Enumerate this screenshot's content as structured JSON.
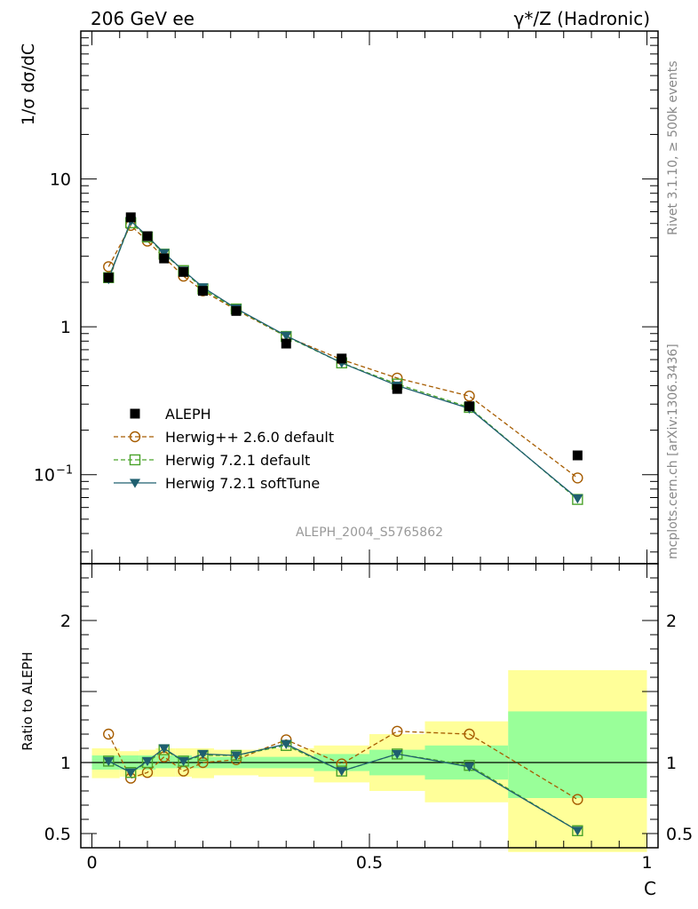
{
  "header": {
    "left_title": "206 GeV ee",
    "right_title": "γ*/Z (Hadronic)"
  },
  "side_labels": {
    "rivet": "Rivet 3.1.10, ≥ 500k events",
    "mcplots": "mcplots.cern.ch [arXiv:1306.3436]"
  },
  "analysis_label": "ALEPH_2004_S5765862",
  "chart_data": [
    {
      "type": "scatter",
      "ylabel": "1/σ  dσ/dC",
      "yscale": "log",
      "xlim": [
        -0.02,
        1.02
      ],
      "ylim": [
        0.025,
        100
      ],
      "y_ticks": [
        {
          "value": 10,
          "label": "10"
        },
        {
          "value": 1,
          "label": "1"
        },
        {
          "value": 0.1,
          "label": "10",
          "exp": "−1"
        }
      ],
      "legend_position": "lower-left",
      "series": [
        {
          "name": "ALEPH",
          "style": "data",
          "color": "#000000",
          "x": [
            0.03,
            0.07,
            0.1,
            0.13,
            0.165,
            0.2,
            0.26,
            0.35,
            0.45,
            0.55,
            0.68,
            0.875
          ],
          "y": [
            2.15,
            5.5,
            4.1,
            2.9,
            2.35,
            1.75,
            1.28,
            0.77,
            0.61,
            0.38,
            0.29,
            0.135
          ],
          "ratio": [
            1.0,
            1.0,
            1.0,
            1.0,
            1.0,
            1.0,
            1.0,
            1.0,
            1.0,
            1.0,
            1.0,
            1.0
          ]
        },
        {
          "name": "Herwig++ 2.6.0 default",
          "style": "circle",
          "color": "#a65c00",
          "x": [
            0.03,
            0.07,
            0.1,
            0.13,
            0.165,
            0.2,
            0.26,
            0.35,
            0.45,
            0.55,
            0.68,
            0.875
          ],
          "y": [
            2.55,
            4.85,
            3.8,
            2.95,
            2.2,
            1.75,
            1.3,
            0.86,
            0.6,
            0.45,
            0.34,
            0.095
          ],
          "ratio": [
            1.2,
            0.89,
            0.93,
            1.04,
            0.94,
            1.0,
            1.02,
            1.16,
            0.99,
            1.22,
            1.2,
            0.74
          ]
        },
        {
          "name": "Herwig 7.2.1 default",
          "style": "square",
          "color": "#4aa32a",
          "x": [
            0.03,
            0.07,
            0.1,
            0.13,
            0.165,
            0.2,
            0.26,
            0.35,
            0.45,
            0.55,
            0.68,
            0.875
          ],
          "y": [
            2.15,
            5.05,
            4.05,
            3.1,
            2.4,
            1.8,
            1.32,
            0.86,
            0.57,
            0.41,
            0.285,
            0.068
          ],
          "ratio": [
            1.01,
            0.93,
            1.0,
            1.09,
            1.01,
            1.05,
            1.05,
            1.12,
            0.94,
            1.06,
            0.98,
            0.52
          ]
        },
        {
          "name": "Herwig 7.2.1 softTune",
          "style": "triangle",
          "color": "#1f5f6f",
          "x": [
            0.03,
            0.07,
            0.1,
            0.13,
            0.165,
            0.2,
            0.26,
            0.35,
            0.45,
            0.55,
            0.68,
            0.875
          ],
          "y": [
            2.1,
            5.2,
            4.1,
            3.15,
            2.4,
            1.85,
            1.33,
            0.87,
            0.57,
            0.4,
            0.28,
            0.069
          ],
          "ratio": [
            1.01,
            0.93,
            1.01,
            1.1,
            1.01,
            1.06,
            1.05,
            1.13,
            0.94,
            1.06,
            0.97,
            0.52
          ]
        }
      ]
    },
    {
      "type": "line",
      "ylabel": "Ratio to ALEPH",
      "xlabel": "C",
      "xlim": [
        -0.02,
        1.02
      ],
      "ylim": [
        0.4,
        2.4
      ],
      "y_ticks": [
        {
          "value": 2,
          "label": "2"
        },
        {
          "value": 1,
          "label": "1"
        },
        {
          "value": 0.5,
          "label": "0.5"
        }
      ],
      "x_ticks": [
        {
          "value": 0,
          "label": "0"
        },
        {
          "value": 0.5,
          "label": "0.5"
        },
        {
          "value": 1,
          "label": "1"
        }
      ],
      "uncertainty_bands": {
        "inner_color": "#99ff99",
        "outer_color": "#ffff99",
        "bins": [
          {
            "x": [
              0.0,
              0.05
            ],
            "inner": [
              0.95,
              1.05
            ],
            "outer": [
              0.89,
              1.1
            ]
          },
          {
            "x": [
              0.05,
              0.085
            ],
            "inner": [
              0.95,
              1.05
            ],
            "outer": [
              0.9,
              1.08
            ]
          },
          {
            "x": [
              0.085,
              0.115
            ],
            "inner": [
              0.95,
              1.05
            ],
            "outer": [
              0.9,
              1.09
            ]
          },
          {
            "x": [
              0.115,
              0.15
            ],
            "inner": [
              0.96,
              1.05
            ],
            "outer": [
              0.9,
              1.1
            ]
          },
          {
            "x": [
              0.15,
              0.18
            ],
            "inner": [
              0.96,
              1.05
            ],
            "outer": [
              0.9,
              1.1
            ]
          },
          {
            "x": [
              0.18,
              0.22
            ],
            "inner": [
              0.96,
              1.04
            ],
            "outer": [
              0.89,
              1.1
            ]
          },
          {
            "x": [
              0.22,
              0.3
            ],
            "inner": [
              0.96,
              1.04
            ],
            "outer": [
              0.91,
              1.09
            ]
          },
          {
            "x": [
              0.3,
              0.4
            ],
            "inner": [
              0.96,
              1.04
            ],
            "outer": [
              0.9,
              1.1
            ]
          },
          {
            "x": [
              0.4,
              0.5
            ],
            "inner": [
              0.94,
              1.06
            ],
            "outer": [
              0.86,
              1.12
            ]
          },
          {
            "x": [
              0.5,
              0.6
            ],
            "inner": [
              0.91,
              1.09
            ],
            "outer": [
              0.8,
              1.2
            ]
          },
          {
            "x": [
              0.6,
              0.75
            ],
            "inner": [
              0.88,
              1.12
            ],
            "outer": [
              0.72,
              1.29
            ]
          },
          {
            "x": [
              0.75,
              1.0
            ],
            "inner": [
              0.75,
              1.36
            ],
            "outer": [
              0.37,
              1.65
            ]
          }
        ]
      }
    }
  ]
}
